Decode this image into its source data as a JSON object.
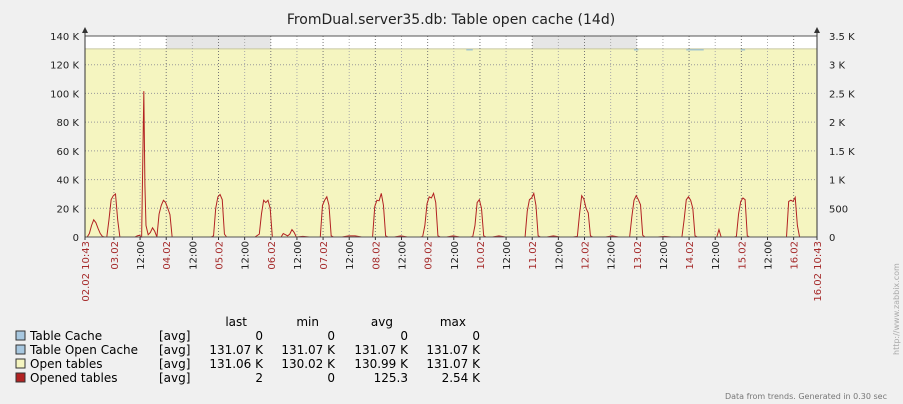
{
  "watermark": "http://www.zabbix.com",
  "footer": "Data from trends. Generated in 0.30 sec",
  "chart_data": {
    "type": "line",
    "title": "FromDual.server35.db: Table open cache  (14d)",
    "left_axis": {
      "min": 0,
      "max": 140000,
      "ticks": [
        "0",
        "20 K",
        "40 K",
        "60 K",
        "80 K",
        "100 K",
        "120 K",
        "140 K"
      ]
    },
    "right_axis": {
      "min": 0,
      "max": 3500,
      "ticks": [
        "0",
        "500",
        "1 K",
        "1.5 K",
        "2 K",
        "2.5 K",
        "3 K",
        "3.5 K"
      ]
    },
    "x_range_hours": [
      0,
      336
    ],
    "x_major_labels": [
      {
        "h": 0,
        "label": "02.02 10:43",
        "red": true
      },
      {
        "h": 13.28,
        "label": "03.02",
        "red": true
      },
      {
        "h": 37.28,
        "label": "04.02",
        "red": true
      },
      {
        "h": 61.28,
        "label": "05.02",
        "red": true
      },
      {
        "h": 85.28,
        "label": "06.02",
        "red": true
      },
      {
        "h": 109.28,
        "label": "07.02",
        "red": true
      },
      {
        "h": 133.28,
        "label": "08.02",
        "red": true
      },
      {
        "h": 157.28,
        "label": "09.02",
        "red": true
      },
      {
        "h": 181.28,
        "label": "10.02",
        "red": true
      },
      {
        "h": 205.28,
        "label": "11.02",
        "red": true
      },
      {
        "h": 229.28,
        "label": "12.02",
        "red": true
      },
      {
        "h": 253.28,
        "label": "13.02",
        "red": true
      },
      {
        "h": 277.28,
        "label": "14.02",
        "red": true
      },
      {
        "h": 301.28,
        "label": "15.02",
        "red": true
      },
      {
        "h": 325.28,
        "label": "16.02",
        "red": true
      },
      {
        "h": 336,
        "label": "16.02 10:43",
        "red": true
      }
    ],
    "x_minor_labels": [
      {
        "h": 25.28,
        "label": "12:00"
      },
      {
        "h": 49.28,
        "label": "12:00"
      },
      {
        "h": 73.28,
        "label": "12:00"
      },
      {
        "h": 97.28,
        "label": "12:00"
      },
      {
        "h": 121.28,
        "label": "12:00"
      },
      {
        "h": 145.28,
        "label": "12:00"
      },
      {
        "h": 169.28,
        "label": "12:00"
      },
      {
        "h": 193.28,
        "label": "12:00"
      },
      {
        "h": 217.28,
        "label": "12:00"
      },
      {
        "h": 241.28,
        "label": "12:00"
      },
      {
        "h": 265.28,
        "label": "12:00"
      },
      {
        "h": 289.28,
        "label": "12:00"
      },
      {
        "h": 313.28,
        "label": "12:00"
      }
    ],
    "weekend_bands_hours": [
      [
        37.28,
        85.28
      ],
      [
        205.28,
        253.28
      ]
    ],
    "open_tables_level": 131000,
    "legend_headers": [
      "last",
      "min",
      "avg",
      "max"
    ],
    "series": [
      {
        "name": "Table Cache",
        "agg": "[avg]",
        "color": "#a8c8e0",
        "last": "0",
        "min": "0",
        "avg": "0",
        "max": "0",
        "axis": "left"
      },
      {
        "name": "Table Open Cache",
        "agg": "[avg]",
        "color": "#a8c8e0",
        "last": "131.07 K",
        "min": "131.07 K",
        "avg": "131.07 K",
        "max": "131.07 K",
        "axis": "left"
      },
      {
        "name": "Open tables",
        "agg": "[avg]",
        "color": "#f5f5c0",
        "last": "131.06 K",
        "min": "130.02 K",
        "avg": "130.99 K",
        "max": "131.07 K",
        "axis": "left"
      },
      {
        "name": "Opened tables",
        "agg": "[avg]",
        "color": "#b22222",
        "last": "2",
        "min": "0",
        "avg": "125.3",
        "max": "2.54 K",
        "axis": "right"
      }
    ],
    "opened_tables_points": [
      [
        0,
        0
      ],
      [
        1,
        0
      ],
      [
        2,
        60
      ],
      [
        3,
        200
      ],
      [
        4,
        300
      ],
      [
        5,
        250
      ],
      [
        6,
        150
      ],
      [
        7,
        60
      ],
      [
        8,
        10
      ],
      [
        9,
        0
      ],
      [
        10,
        0
      ],
      [
        11,
        300
      ],
      [
        12,
        650
      ],
      [
        13,
        720
      ],
      [
        14,
        750
      ],
      [
        15,
        300
      ],
      [
        16,
        0
      ],
      [
        17,
        0
      ],
      [
        18,
        0
      ],
      [
        19,
        0
      ],
      [
        20,
        0
      ],
      [
        21,
        0
      ],
      [
        22,
        0
      ],
      [
        23,
        0
      ],
      [
        24,
        20
      ],
      [
        25,
        30
      ],
      [
        26,
        0
      ],
      [
        27,
        2540
      ],
      [
        27.5,
        900
      ],
      [
        28,
        200
      ],
      [
        29,
        40
      ],
      [
        30,
        80
      ],
      [
        31,
        160
      ],
      [
        32,
        100
      ],
      [
        33,
        0
      ],
      [
        34,
        400
      ],
      [
        35,
        550
      ],
      [
        36,
        640
      ],
      [
        37,
        600
      ],
      [
        38,
        500
      ],
      [
        39,
        390
      ],
      [
        40,
        0
      ],
      [
        48,
        0
      ],
      [
        49,
        0
      ],
      [
        56,
        0
      ],
      [
        58,
        0
      ],
      [
        59,
        20
      ],
      [
        60,
        500
      ],
      [
        61,
        700
      ],
      [
        62,
        740
      ],
      [
        63,
        650
      ],
      [
        64,
        50
      ],
      [
        65,
        0
      ],
      [
        72,
        0
      ],
      [
        75,
        0
      ],
      [
        78,
        0
      ],
      [
        80,
        50
      ],
      [
        81,
        400
      ],
      [
        82,
        640
      ],
      [
        83,
        600
      ],
      [
        84,
        640
      ],
      [
        85,
        500
      ],
      [
        86,
        0
      ],
      [
        90,
        0
      ],
      [
        91,
        60
      ],
      [
        92,
        40
      ],
      [
        93,
        20
      ],
      [
        94,
        50
      ],
      [
        95,
        130
      ],
      [
        96,
        80
      ],
      [
        97,
        0
      ],
      [
        100,
        10
      ],
      [
        103,
        0
      ],
      [
        106,
        0
      ],
      [
        108,
        0
      ],
      [
        109,
        550
      ],
      [
        110,
        640
      ],
      [
        111,
        700
      ],
      [
        112,
        550
      ],
      [
        113,
        20
      ],
      [
        114,
        0
      ],
      [
        118,
        0
      ],
      [
        121,
        20
      ],
      [
        124,
        20
      ],
      [
        127,
        0
      ],
      [
        130,
        0
      ],
      [
        132,
        0
      ],
      [
        133,
        530
      ],
      [
        134,
        640
      ],
      [
        135,
        630
      ],
      [
        136,
        760
      ],
      [
        137,
        550
      ],
      [
        138,
        20
      ],
      [
        139,
        0
      ],
      [
        142,
        0
      ],
      [
        145,
        20
      ],
      [
        148,
        0
      ],
      [
        151,
        0
      ],
      [
        154,
        0
      ],
      [
        155,
        10
      ],
      [
        156,
        200
      ],
      [
        157,
        580
      ],
      [
        158,
        700
      ],
      [
        159,
        680
      ],
      [
        160,
        760
      ],
      [
        161,
        600
      ],
      [
        162,
        20
      ],
      [
        163,
        0
      ],
      [
        166,
        0
      ],
      [
        169,
        20
      ],
      [
        172,
        0
      ],
      [
        175,
        0
      ],
      [
        177,
        0
      ],
      [
        178,
        10
      ],
      [
        179,
        200
      ],
      [
        180,
        600
      ],
      [
        181,
        650
      ],
      [
        182,
        500
      ],
      [
        183,
        20
      ],
      [
        184,
        0
      ],
      [
        187,
        0
      ],
      [
        190,
        20
      ],
      [
        193,
        0
      ],
      [
        196,
        0
      ],
      [
        199,
        0
      ],
      [
        202,
        0
      ],
      [
        203,
        450
      ],
      [
        204,
        650
      ],
      [
        205,
        680
      ],
      [
        206,
        760
      ],
      [
        207,
        550
      ],
      [
        208,
        20
      ],
      [
        209,
        0
      ],
      [
        212,
        0
      ],
      [
        215,
        20
      ],
      [
        218,
        0
      ],
      [
        221,
        0
      ],
      [
        224,
        0
      ],
      [
        226,
        10
      ],
      [
        227,
        400
      ],
      [
        228,
        720
      ],
      [
        229,
        660
      ],
      [
        230,
        500
      ],
      [
        231,
        420
      ],
      [
        232,
        20
      ],
      [
        233,
        0
      ],
      [
        236,
        0
      ],
      [
        239,
        0
      ],
      [
        242,
        20
      ],
      [
        245,
        0
      ],
      [
        248,
        0
      ],
      [
        250,
        0
      ],
      [
        251,
        350
      ],
      [
        252,
        640
      ],
      [
        253,
        720
      ],
      [
        254,
        650
      ],
      [
        255,
        560
      ],
      [
        256,
        30
      ],
      [
        257,
        0
      ],
      [
        260,
        0
      ],
      [
        263,
        0
      ],
      [
        266,
        10
      ],
      [
        269,
        0
      ],
      [
        272,
        0
      ],
      [
        274,
        0
      ],
      [
        275,
        300
      ],
      [
        276,
        650
      ],
      [
        277,
        700
      ],
      [
        278,
        640
      ],
      [
        279,
        500
      ],
      [
        280,
        20
      ],
      [
        281,
        0
      ],
      [
        284,
        0
      ],
      [
        287,
        0
      ],
      [
        290,
        0
      ],
      [
        291,
        130
      ],
      [
        292,
        0
      ],
      [
        295,
        0
      ],
      [
        298,
        0
      ],
      [
        299,
        10
      ],
      [
        300,
        400
      ],
      [
        301,
        620
      ],
      [
        302,
        680
      ],
      [
        303,
        650
      ],
      [
        304,
        20
      ],
      [
        305,
        0
      ],
      [
        308,
        0
      ],
      [
        311,
        0
      ],
      [
        314,
        0
      ],
      [
        317,
        0
      ],
      [
        320,
        0
      ],
      [
        322,
        0
      ],
      [
        323,
        620
      ],
      [
        324,
        640
      ],
      [
        325,
        620
      ],
      [
        326,
        690
      ],
      [
        327,
        200
      ],
      [
        328,
        0
      ],
      [
        331,
        0
      ],
      [
        334,
        0
      ],
      [
        336,
        0
      ]
    ]
  }
}
